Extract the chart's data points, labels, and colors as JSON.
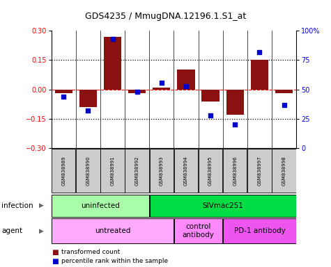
{
  "title": "GDS4235 / MmugDNA.12196.1.S1_at",
  "samples": [
    "GSM838989",
    "GSM838990",
    "GSM838991",
    "GSM838992",
    "GSM838993",
    "GSM838994",
    "GSM838995",
    "GSM838996",
    "GSM838997",
    "GSM838998"
  ],
  "bar_values": [
    -0.02,
    -0.09,
    0.27,
    -0.02,
    0.01,
    0.1,
    -0.06,
    -0.13,
    0.15,
    -0.02
  ],
  "dot_values": [
    44,
    32,
    93,
    48,
    56,
    53,
    28,
    20,
    82,
    37
  ],
  "bar_color": "#8B1010",
  "dot_color": "#0000CC",
  "ylim": [
    -0.3,
    0.3
  ],
  "y2lim": [
    0,
    100
  ],
  "yticks": [
    -0.3,
    -0.15,
    0,
    0.15,
    0.3
  ],
  "y2ticks": [
    0,
    25,
    50,
    75,
    100
  ],
  "infection_groups": [
    {
      "label": "uninfected",
      "start": 0,
      "end": 4,
      "color": "#AAFFAA"
    },
    {
      "label": "SIVmac251",
      "start": 4,
      "end": 10,
      "color": "#00DD44"
    }
  ],
  "agent_groups": [
    {
      "label": "untreated",
      "start": 0,
      "end": 5,
      "color": "#FFAAFF"
    },
    {
      "label": "control\nantibody",
      "start": 5,
      "end": 7,
      "color": "#FF88FF"
    },
    {
      "label": "PD-1 antibody",
      "start": 7,
      "end": 10,
      "color": "#EE55EE"
    }
  ],
  "legend_items": [
    {
      "label": "transformed count",
      "color": "#8B1010"
    },
    {
      "label": "percentile rank within the sample",
      "color": "#0000CC"
    }
  ],
  "infection_label": "infection",
  "agent_label": "agent",
  "bg_color": "#FFFFFF"
}
